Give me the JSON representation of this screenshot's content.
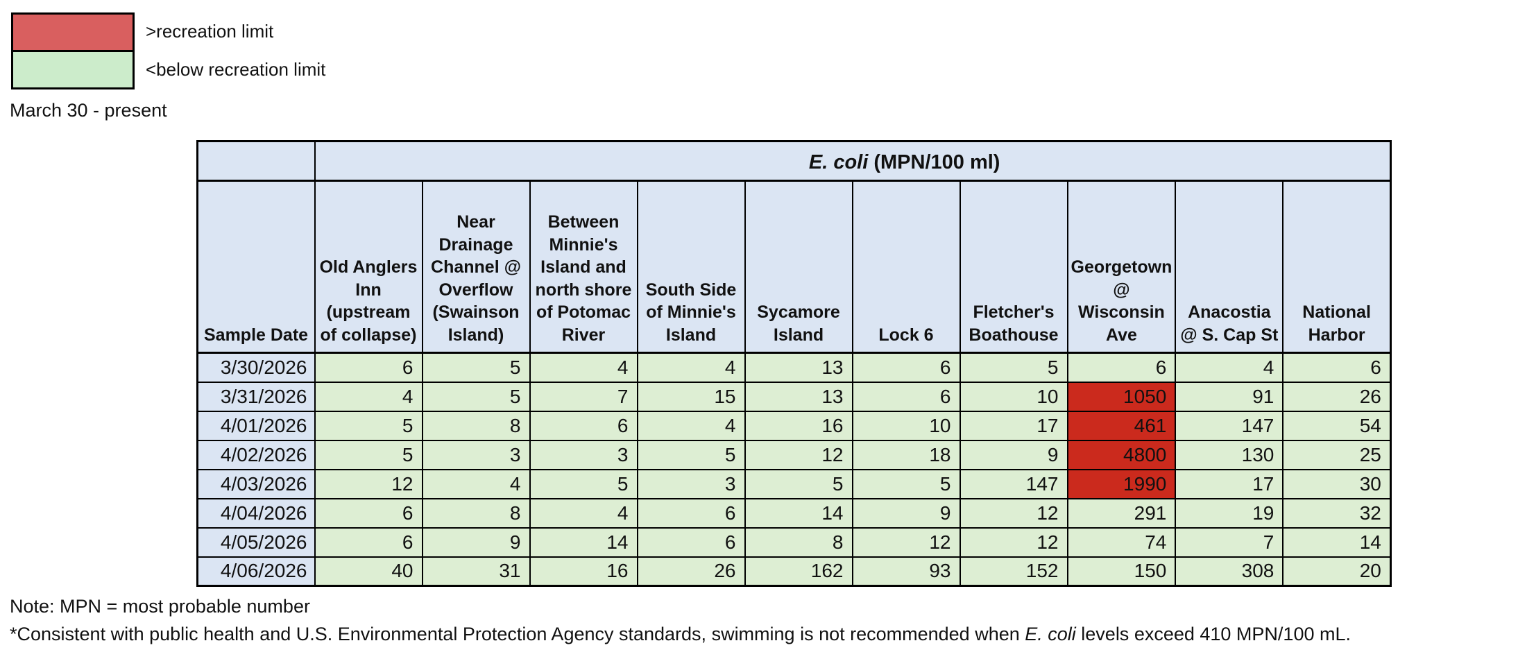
{
  "colors": {
    "exceed_cell": "#cb2a1d",
    "below_cell": "#ddeed3",
    "header_bg": "#dbe5f3",
    "legend_exceed": "#d95f5f",
    "legend_below": "#cceccb",
    "border_color": "#000000",
    "page_bg": "#ffffff"
  },
  "legend": {
    "items": [
      {
        "label": ">recreation limit",
        "type": "exceed",
        "color": "#d95f5f"
      },
      {
        "label": "<below recreation limit",
        "type": "below",
        "color": "#cceccb"
      }
    ]
  },
  "period_label": "March 30 - present",
  "chart_data": {
    "type": "table",
    "title_italic": "E. coli",
    "title_rest": " (MPN/100 ml)",
    "title_full": "E. coli (MPN/100 ml)",
    "row_header": "Sample Date",
    "recreation_limit_mpn": 410,
    "conditional_format": "cell filled red when value exceeds 410 MPN/100 ml, light green when below",
    "columns": [
      "Old Anglers Inn (upstream of collapse)",
      "Near Drainage Channel @ Overflow (Swainson Island)",
      "Between Minnie's Island and north shore of Potomac River",
      "South Side of Minnie's Island",
      "Sycamore Island",
      "Lock 6",
      "Fletcher's Boathouse",
      "Georgetown @ Wisconsin Ave",
      "Anacostia @ S. Cap St",
      "National Harbor"
    ],
    "rows": [
      {
        "date": "3/30/2026",
        "values": [
          6,
          5,
          4,
          4,
          13,
          6,
          5,
          6,
          4,
          6
        ]
      },
      {
        "date": "3/31/2026",
        "values": [
          4,
          5,
          7,
          15,
          13,
          6,
          10,
          1050,
          91,
          26
        ]
      },
      {
        "date": "4/01/2026",
        "values": [
          5,
          8,
          6,
          4,
          16,
          10,
          17,
          461,
          147,
          54
        ]
      },
      {
        "date": "4/02/2026",
        "values": [
          5,
          3,
          3,
          5,
          12,
          18,
          9,
          4800,
          130,
          25
        ]
      },
      {
        "date": "4/03/2026",
        "values": [
          12,
          4,
          5,
          3,
          5,
          5,
          147,
          1990,
          17,
          30
        ]
      },
      {
        "date": "4/04/2026",
        "values": [
          6,
          8,
          4,
          6,
          14,
          9,
          12,
          291,
          19,
          32
        ]
      },
      {
        "date": "4/05/2026",
        "values": [
          6,
          9,
          14,
          6,
          8,
          12,
          12,
          74,
          7,
          14
        ]
      },
      {
        "date": "4/06/2026",
        "values": [
          40,
          31,
          16,
          26,
          162,
          93,
          152,
          150,
          308,
          20
        ]
      }
    ]
  },
  "notes": {
    "note1": "Note: MPN = most probable number",
    "note2_pre": "*Consistent with public health and U.S. Environmental Protection Agency standards, swimming is not recommended when ",
    "note2_italic": "E. coli",
    "note2_post": " levels exceed 410 MPN/100 mL."
  }
}
